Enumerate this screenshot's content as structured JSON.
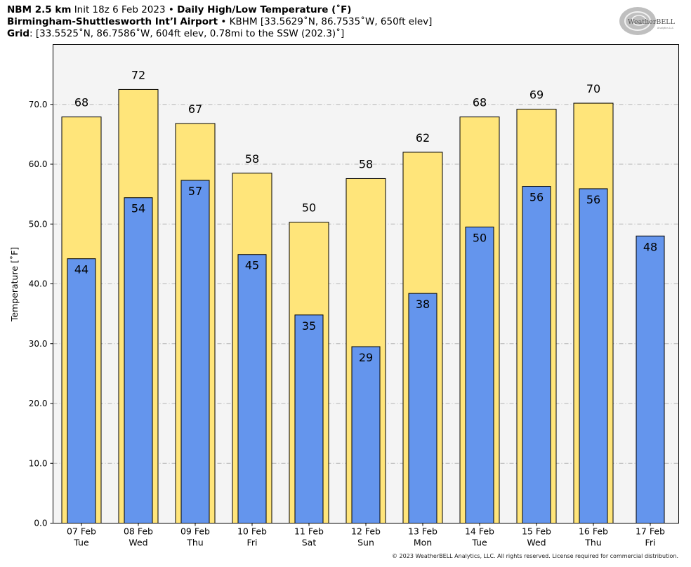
{
  "header": {
    "line1": {
      "model": "NBM 2.5 km",
      "init": "Init 18z 6 Feb 2023",
      "sep": "•",
      "product": "Daily High/Low Temperature (˚F)"
    },
    "line2": {
      "station": "Birmingham-Shuttlesworth Int’l Airport",
      "sep": "•",
      "details": "KBHM [33.5629˚N, 86.7535˚W, 650ft elev]"
    },
    "line3": {
      "label": "Grid",
      "details": ": [33.5525˚N, 86.7586˚W, 604ft elev, 0.78mi to the SSW (202.3)˚]"
    }
  },
  "logo": {
    "name": "weatherbell-logo",
    "text": "WeatherBELL",
    "sub": "Analytics LLC"
  },
  "copyright": "© 2023 WeatherBELL Analytics, LLC. All rights reserved. License required for commercial distribution.",
  "chart_data": {
    "type": "bar",
    "title": "Daily High/Low Temperature (˚F)",
    "ylabel": "Temperature [˚F]",
    "xlabel": "",
    "ylim": [
      0,
      80
    ],
    "yticks": [
      "0.0",
      "10.0",
      "20.0",
      "30.0",
      "40.0",
      "50.0",
      "60.0",
      "70.0"
    ],
    "ytick_values": [
      0,
      10,
      20,
      30,
      40,
      50,
      60,
      70
    ],
    "grid": true,
    "colors": {
      "high": "#FFE57A",
      "low": "#6495ED",
      "plot_bg": "#F4F4F4",
      "grid": "#B5B5B5"
    },
    "categories": [
      {
        "date": "07 Feb",
        "day": "Tue"
      },
      {
        "date": "08 Feb",
        "day": "Wed"
      },
      {
        "date": "09 Feb",
        "day": "Thu"
      },
      {
        "date": "10 Feb",
        "day": "Fri"
      },
      {
        "date": "11 Feb",
        "day": "Sat"
      },
      {
        "date": "12 Feb",
        "day": "Sun"
      },
      {
        "date": "13 Feb",
        "day": "Mon"
      },
      {
        "date": "14 Feb",
        "day": "Tue"
      },
      {
        "date": "15 Feb",
        "day": "Wed"
      },
      {
        "date": "16 Feb",
        "day": "Thu"
      },
      {
        "date": "17 Feb",
        "day": "Fri"
      }
    ],
    "series": [
      {
        "key": "high",
        "values": [
          67.9,
          72.5,
          66.8,
          58.5,
          50.3,
          57.6,
          62.0,
          67.9,
          69.2,
          70.2,
          null
        ],
        "labels": [
          "68",
          "72",
          "67",
          "58",
          "50",
          "58",
          "62",
          "68",
          "69",
          "70",
          ""
        ]
      },
      {
        "key": "low",
        "values": [
          44.2,
          54.4,
          57.3,
          44.9,
          34.8,
          29.5,
          38.4,
          49.5,
          56.3,
          55.9,
          48.0
        ],
        "labels": [
          "44",
          "54",
          "57",
          "45",
          "35",
          "29",
          "38",
          "50",
          "56",
          "56",
          "48"
        ]
      }
    ]
  }
}
